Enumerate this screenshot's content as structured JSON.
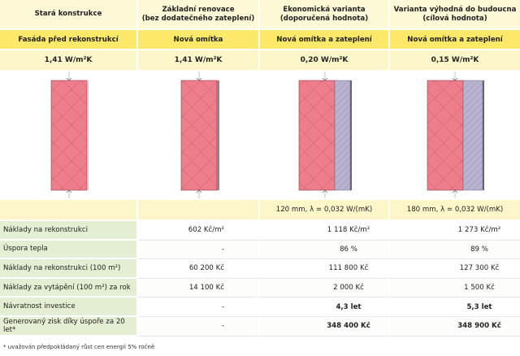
{
  "headers": [
    "Stará konstrukce",
    "Základní renovace\n(bez dodatečného zateplení)",
    "Ekonomická varianta\n(doporučená hodnota)",
    "Varianta výhodná do budoucna\n(cílová hodnota)"
  ],
  "subheaders": [
    "Fasáda před rekonstrukcí",
    "Nová omítka",
    "Nová omítka a zateplení",
    "Nová omítka a zateplení"
  ],
  "u_values": [
    "1,41 W/m²K",
    "1,41 W/m²K",
    "0,20 W/m²K",
    "0,15 W/m²K"
  ],
  "insulation": [
    "",
    "",
    "120 mm,  λ = 0,032 W/(mK)",
    "180 mm,  λ = 0,032 W/(mK)"
  ],
  "rows": [
    {
      "label": "Náklady na rekonstrukci",
      "v1": "602 Kč/m²",
      "v2": "1 118 Kč/m²",
      "v3": "1 273 Kč/m²",
      "bold": false
    },
    {
      "label": "Úspora tepla",
      "v1": "-",
      "v2": "86 %",
      "v3": "89 %",
      "bold": false
    },
    {
      "label": "Náklady na rekonstrukci (100 m²)",
      "v1": "60 200 Kč",
      "v2": "111 800 Kč",
      "v3": "127 300 Kč",
      "bold": false
    },
    {
      "label": "Náklady za vytápění (100 m²) za rok",
      "v1": "14 100 Kč",
      "v2": "2 000 Kč",
      "v3": "1 500 Kč",
      "bold": false
    },
    {
      "label": "Návratnost investice",
      "v1": "-",
      "v2": "4,3 let",
      "v3": "5,3 let",
      "bold": true
    },
    {
      "label": "Generovaný zisk díky úspoře za 20 let*",
      "v1": "-",
      "v2": "348 400 Kč",
      "v3": "348 900 Kč",
      "bold": true
    }
  ],
  "footnote": "* uvažován předpokládaný růst cen energií 5% ročně",
  "colors": {
    "header_bg": "#fdf8d6",
    "subheader_bg": "#fce96a",
    "label_bg": "#e3eed2",
    "brick": "#ef7e8c",
    "insulation": "#b9b2cf",
    "render": "#c9c9c9"
  }
}
